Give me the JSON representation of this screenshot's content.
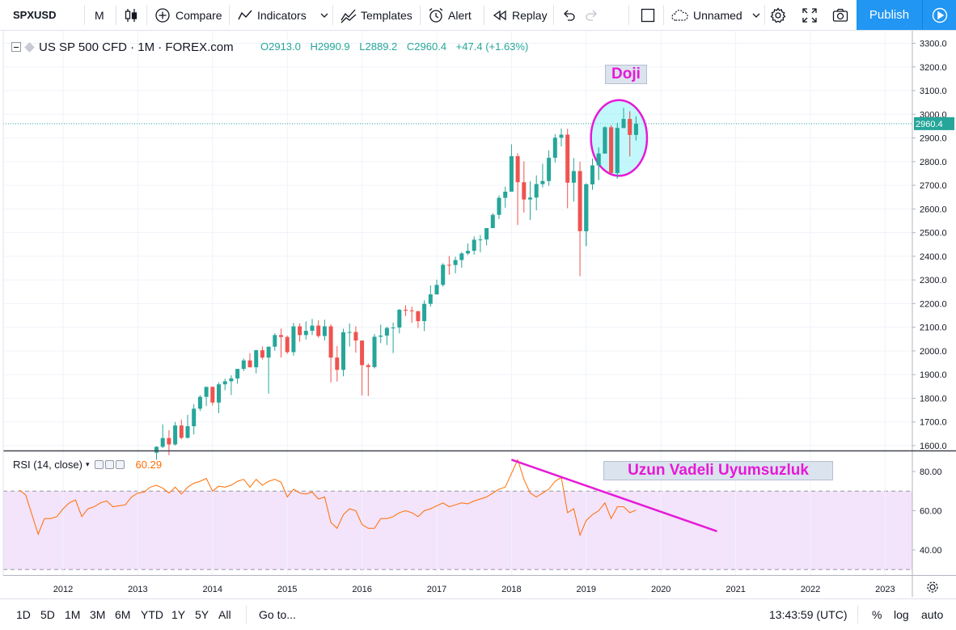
{
  "toolbar": {
    "symbol": "SPXUSD",
    "interval": "M",
    "compare": "Compare",
    "indicators": "Indicators",
    "templates": "Templates",
    "alert": "Alert",
    "replay": "Replay",
    "layout_name": "Unnamed",
    "publish": "Publish"
  },
  "legend": {
    "title": "US SP 500 CFD · 1M · FOREX.com",
    "open": "O2913.0",
    "high": "H2990.9",
    "low": "L2889.2",
    "close": "C2960.4",
    "change": "+47.4 (+1.63%)"
  },
  "rsi_legend": {
    "label": "RSI (14, close)",
    "value": "60.29"
  },
  "annotations": {
    "doji": "Doji",
    "divergence": "Uzun Vadeli Uyumsuzluk"
  },
  "colors": {
    "up": "#26a69a",
    "down": "#ef5350",
    "rsi_line": "#ff6d00",
    "rsi_band": "#f3e3fb",
    "annotation": "#e619d7",
    "doji_fill": "#8ff3f7",
    "accent": "#2196f3"
  },
  "bottombar": {
    "ranges": [
      "1D",
      "5D",
      "1M",
      "3M",
      "6M",
      "YTD",
      "1Y",
      "5Y",
      "All"
    ],
    "goto": "Go to...",
    "time": "13:43:59 (UTC)",
    "percent": "%",
    "log": "log",
    "auto": "auto"
  },
  "chart_data": [
    {
      "type": "candlestick",
      "symbol": "SPXUSD",
      "interval": "1M",
      "ylim": [
        1580,
        3330
      ],
      "y_ticks": [
        "3300.0",
        "3200.0",
        "3100.0",
        "3000.0",
        "2900.0",
        "2800.0",
        "2700.0",
        "2600.0",
        "2500.0",
        "2400.0",
        "2300.0",
        "2200.0",
        "2100.0",
        "2000.0",
        "1900.0",
        "1800.0",
        "1700.0",
        "1600.0"
      ],
      "x_ticks": [
        "2012",
        "2013",
        "2014",
        "2015",
        "2016",
        "2017",
        "2018",
        "2019",
        "2020",
        "2021",
        "2022",
        "2023"
      ],
      "last_price": "2960.4",
      "candles": [
        {
          "t": "2013-04",
          "o": 1570,
          "h": 1597,
          "l": 1540,
          "c": 1595
        },
        {
          "t": "2013-05",
          "o": 1595,
          "h": 1690,
          "l": 1590,
          "c": 1632
        },
        {
          "t": "2013-06",
          "o": 1632,
          "h": 1665,
          "l": 1560,
          "c": 1605
        },
        {
          "t": "2013-07",
          "o": 1605,
          "h": 1700,
          "l": 1600,
          "c": 1685
        },
        {
          "t": "2013-08",
          "o": 1685,
          "h": 1710,
          "l": 1627,
          "c": 1633
        },
        {
          "t": "2013-09",
          "o": 1633,
          "h": 1730,
          "l": 1630,
          "c": 1682
        },
        {
          "t": "2013-10",
          "o": 1682,
          "h": 1775,
          "l": 1647,
          "c": 1756
        },
        {
          "t": "2013-11",
          "o": 1756,
          "h": 1813,
          "l": 1746,
          "c": 1806
        },
        {
          "t": "2013-12",
          "o": 1806,
          "h": 1849,
          "l": 1767,
          "c": 1848
        },
        {
          "t": "2014-01",
          "o": 1848,
          "h": 1850,
          "l": 1770,
          "c": 1782
        },
        {
          "t": "2014-02",
          "o": 1782,
          "h": 1867,
          "l": 1737,
          "c": 1859
        },
        {
          "t": "2014-03",
          "o": 1859,
          "h": 1883,
          "l": 1834,
          "c": 1872
        },
        {
          "t": "2014-04",
          "o": 1872,
          "h": 1897,
          "l": 1814,
          "c": 1884
        },
        {
          "t": "2014-05",
          "o": 1884,
          "h": 1924,
          "l": 1862,
          "c": 1924
        },
        {
          "t": "2014-06",
          "o": 1924,
          "h": 1968,
          "l": 1915,
          "c": 1960
        },
        {
          "t": "2014-07",
          "o": 1960,
          "h": 1991,
          "l": 1930,
          "c": 1931
        },
        {
          "t": "2014-08",
          "o": 1931,
          "h": 2005,
          "l": 1905,
          "c": 2003
        },
        {
          "t": "2014-09",
          "o": 2003,
          "h": 2019,
          "l": 1964,
          "c": 1972
        },
        {
          "t": "2014-10",
          "o": 1972,
          "h": 2018,
          "l": 1820,
          "c": 2018
        },
        {
          "t": "2014-11",
          "o": 2018,
          "h": 2075,
          "l": 2001,
          "c": 2067
        },
        {
          "t": "2014-12",
          "o": 2067,
          "h": 2094,
          "l": 1972,
          "c": 2059
        },
        {
          "t": "2015-01",
          "o": 2059,
          "h": 2065,
          "l": 1988,
          "c": 1995
        },
        {
          "t": "2015-02",
          "o": 1995,
          "h": 2119,
          "l": 1980,
          "c": 2104
        },
        {
          "t": "2015-03",
          "o": 2104,
          "h": 2117,
          "l": 2039,
          "c": 2067
        },
        {
          "t": "2015-04",
          "o": 2067,
          "h": 2125,
          "l": 2048,
          "c": 2085
        },
        {
          "t": "2015-05",
          "o": 2085,
          "h": 2135,
          "l": 2067,
          "c": 2107
        },
        {
          "t": "2015-06",
          "o": 2107,
          "h": 2129,
          "l": 2056,
          "c": 2063
        },
        {
          "t": "2015-07",
          "o": 2063,
          "h": 2132,
          "l": 2044,
          "c": 2104
        },
        {
          "t": "2015-08",
          "o": 2104,
          "h": 2113,
          "l": 1867,
          "c": 1972
        },
        {
          "t": "2015-09",
          "o": 1972,
          "h": 2021,
          "l": 1871,
          "c": 1920
        },
        {
          "t": "2015-10",
          "o": 1920,
          "h": 2094,
          "l": 1893,
          "c": 2079
        },
        {
          "t": "2015-11",
          "o": 2079,
          "h": 2116,
          "l": 2019,
          "c": 2080
        },
        {
          "t": "2015-12",
          "o": 2080,
          "h": 2104,
          "l": 1993,
          "c": 2044
        },
        {
          "t": "2016-01",
          "o": 2044,
          "h": 2044,
          "l": 1812,
          "c": 1940
        },
        {
          "t": "2016-02",
          "o": 1940,
          "h": 1947,
          "l": 1810,
          "c": 1932
        },
        {
          "t": "2016-03",
          "o": 1932,
          "h": 2072,
          "l": 1926,
          "c": 2060
        },
        {
          "t": "2016-04",
          "o": 2060,
          "h": 2111,
          "l": 2033,
          "c": 2065
        },
        {
          "t": "2016-05",
          "o": 2065,
          "h": 2103,
          "l": 2025,
          "c": 2097
        },
        {
          "t": "2016-06",
          "o": 2097,
          "h": 2120,
          "l": 1991,
          "c": 2099
        },
        {
          "t": "2016-07",
          "o": 2099,
          "h": 2177,
          "l": 2074,
          "c": 2174
        },
        {
          "t": "2016-08",
          "o": 2174,
          "h": 2193,
          "l": 2147,
          "c": 2171
        },
        {
          "t": "2016-09",
          "o": 2171,
          "h": 2187,
          "l": 2119,
          "c": 2168
        },
        {
          "t": "2016-10",
          "o": 2168,
          "h": 2169,
          "l": 2097,
          "c": 2126
        },
        {
          "t": "2016-11",
          "o": 2126,
          "h": 2214,
          "l": 2084,
          "c": 2199
        },
        {
          "t": "2016-12",
          "o": 2199,
          "h": 2277,
          "l": 2187,
          "c": 2239
        },
        {
          "t": "2017-01",
          "o": 2239,
          "h": 2301,
          "l": 2238,
          "c": 2279
        },
        {
          "t": "2017-02",
          "o": 2279,
          "h": 2371,
          "l": 2271,
          "c": 2364
        },
        {
          "t": "2017-03",
          "o": 2364,
          "h": 2401,
          "l": 2322,
          "c": 2363
        },
        {
          "t": "2017-04",
          "o": 2363,
          "h": 2398,
          "l": 2328,
          "c": 2384
        },
        {
          "t": "2017-05",
          "o": 2384,
          "h": 2418,
          "l": 2352,
          "c": 2412
        },
        {
          "t": "2017-06",
          "o": 2412,
          "h": 2454,
          "l": 2405,
          "c": 2423
        },
        {
          "t": "2017-07",
          "o": 2423,
          "h": 2484,
          "l": 2407,
          "c": 2470
        },
        {
          "t": "2017-08",
          "o": 2470,
          "h": 2490,
          "l": 2417,
          "c": 2471
        },
        {
          "t": "2017-09",
          "o": 2471,
          "h": 2519,
          "l": 2446,
          "c": 2519
        },
        {
          "t": "2017-10",
          "o": 2519,
          "h": 2582,
          "l": 2520,
          "c": 2575
        },
        {
          "t": "2017-11",
          "o": 2575,
          "h": 2657,
          "l": 2557,
          "c": 2647
        },
        {
          "t": "2017-12",
          "o": 2647,
          "h": 2694,
          "l": 2605,
          "c": 2673
        },
        {
          "t": "2018-01",
          "o": 2673,
          "h": 2873,
          "l": 2682,
          "c": 2823
        },
        {
          "t": "2018-02",
          "o": 2823,
          "h": 2835,
          "l": 2532,
          "c": 2713
        },
        {
          "t": "2018-03",
          "o": 2713,
          "h": 2801,
          "l": 2585,
          "c": 2640
        },
        {
          "t": "2018-04",
          "o": 2640,
          "h": 2717,
          "l": 2553,
          "c": 2648
        },
        {
          "t": "2018-05",
          "o": 2648,
          "h": 2742,
          "l": 2594,
          "c": 2705
        },
        {
          "t": "2018-06",
          "o": 2705,
          "h": 2791,
          "l": 2691,
          "c": 2718
        },
        {
          "t": "2018-07",
          "o": 2718,
          "h": 2848,
          "l": 2698,
          "c": 2816
        },
        {
          "t": "2018-08",
          "o": 2816,
          "h": 2916,
          "l": 2796,
          "c": 2901
        },
        {
          "t": "2018-09",
          "o": 2901,
          "h": 2940,
          "l": 2864,
          "c": 2914
        },
        {
          "t": "2018-10",
          "o": 2914,
          "h": 2939,
          "l": 2603,
          "c": 2711
        },
        {
          "t": "2018-11",
          "o": 2711,
          "h": 2815,
          "l": 2631,
          "c": 2760
        },
        {
          "t": "2018-12",
          "o": 2760,
          "h": 2800,
          "l": 2316,
          "c": 2506
        },
        {
          "t": "2019-01",
          "o": 2506,
          "h": 2708,
          "l": 2443,
          "c": 2704
        },
        {
          "t": "2019-02",
          "o": 2704,
          "h": 2813,
          "l": 2681,
          "c": 2784
        },
        {
          "t": "2019-03",
          "o": 2784,
          "h": 2860,
          "l": 2722,
          "c": 2834
        },
        {
          "t": "2019-04",
          "o": 2834,
          "h": 2949,
          "l": 2848,
          "c": 2945
        },
        {
          "t": "2019-05",
          "o": 2945,
          "h": 2954,
          "l": 2750,
          "c": 2752
        },
        {
          "t": "2019-06",
          "o": 2752,
          "h": 2964,
          "l": 2729,
          "c": 2942
        },
        {
          "t": "2019-07",
          "o": 2942,
          "h": 3027,
          "l": 2952,
          "c": 2980
        },
        {
          "t": "2019-08",
          "o": 2980,
          "h": 3013,
          "l": 2822,
          "c": 2913
        },
        {
          "t": "2019-09",
          "o": 2913,
          "h": 2990.9,
          "l": 2889.2,
          "c": 2960.4
        }
      ]
    },
    {
      "type": "line",
      "name": "RSI (14, close)",
      "ylim": [
        27,
        92
      ],
      "y_ticks": [
        "80.00",
        "60.00",
        "40.00"
      ],
      "bands": {
        "upper": 70,
        "lower": 30
      },
      "x": [
        "2011-06",
        "2011-07",
        "2011-08",
        "2011-09",
        "2011-10",
        "2011-11",
        "2011-12",
        "2012-01",
        "2012-02",
        "2012-03",
        "2012-04",
        "2012-05",
        "2012-06",
        "2012-07",
        "2012-08",
        "2012-09",
        "2012-10",
        "2012-11",
        "2012-12",
        "2013-01",
        "2013-02",
        "2013-03",
        "2013-04",
        "2013-05",
        "2013-06",
        "2013-07",
        "2013-08",
        "2013-09",
        "2013-10",
        "2013-11",
        "2013-12",
        "2014-01",
        "2014-02",
        "2014-03",
        "2014-04",
        "2014-05",
        "2014-06",
        "2014-07",
        "2014-08",
        "2014-09",
        "2014-10",
        "2014-11",
        "2014-12",
        "2015-01",
        "2015-02",
        "2015-03",
        "2015-04",
        "2015-05",
        "2015-06",
        "2015-07",
        "2015-08",
        "2015-09",
        "2015-10",
        "2015-11",
        "2015-12",
        "2016-01",
        "2016-02",
        "2016-03",
        "2016-04",
        "2016-05",
        "2016-06",
        "2016-07",
        "2016-08",
        "2016-09",
        "2016-10",
        "2016-11",
        "2016-12",
        "2017-01",
        "2017-02",
        "2017-03",
        "2017-04",
        "2017-05",
        "2017-06",
        "2017-07",
        "2017-08",
        "2017-09",
        "2017-10",
        "2017-11",
        "2017-12",
        "2018-01",
        "2018-02",
        "2018-03",
        "2018-04",
        "2018-05",
        "2018-06",
        "2018-07",
        "2018-08",
        "2018-09",
        "2018-10",
        "2018-11",
        "2018-12",
        "2019-01",
        "2019-02",
        "2019-03",
        "2019-04",
        "2019-05",
        "2019-06",
        "2019-07",
        "2019-08",
        "2019-09"
      ],
      "values": [
        70.5,
        68,
        58,
        48,
        56,
        56,
        57,
        61,
        64,
        65.5,
        57,
        61,
        62,
        64,
        65,
        62,
        62.5,
        63,
        67,
        69,
        69.5,
        72,
        73,
        71.5,
        69,
        72,
        68.5,
        72,
        74,
        75,
        76.5,
        70,
        72.5,
        72,
        73,
        75,
        76,
        72,
        76,
        73,
        75,
        76,
        74.5,
        67,
        71,
        69,
        68.5,
        69.5,
        66,
        67,
        54,
        51,
        58,
        61,
        60,
        53,
        51,
        51,
        56,
        56,
        57,
        59,
        60,
        59,
        57,
        60,
        61,
        62.5,
        64,
        62,
        63,
        64,
        63.5,
        65,
        66,
        67,
        69,
        71,
        72,
        79,
        86,
        76,
        69,
        67,
        69,
        71,
        75,
        77,
        59,
        61,
        47.5,
        55,
        58,
        60,
        64,
        56,
        62,
        62,
        59,
        60.3
      ]
    },
    {
      "type": "annotation",
      "name": "divergence-trendline",
      "from": {
        "t": "2018-01",
        "rsi": 86
      },
      "to": {
        "t": "2020-10",
        "rsi": 49.5
      }
    },
    {
      "type": "annotation",
      "name": "doji-ellipse",
      "center": {
        "t": "2019-06",
        "price": 2900
      },
      "rx_months": 4.5,
      "ry_price": 160
    }
  ]
}
